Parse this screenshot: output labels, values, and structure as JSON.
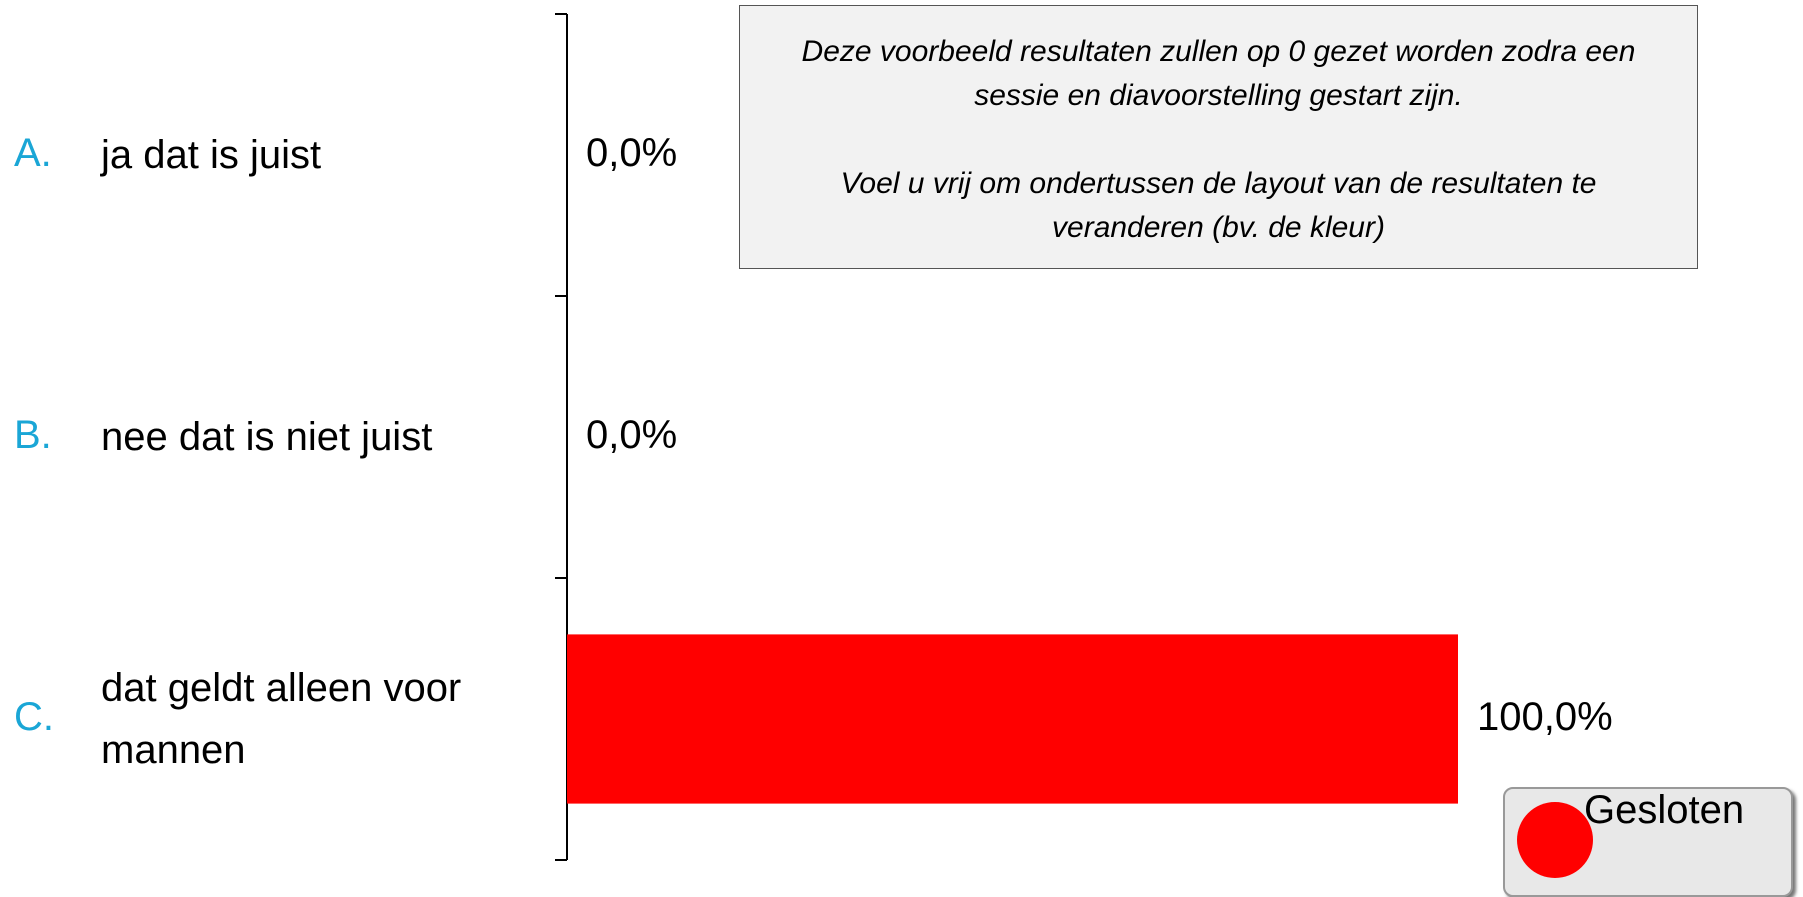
{
  "chart_data": {
    "type": "bar",
    "orientation": "horizontal",
    "letters": [
      "A.",
      "B.",
      "C."
    ],
    "categories": [
      "ja dat is juist",
      "nee dat is niet juist",
      "dat geldt alleen voor mannen"
    ],
    "values": [
      0,
      0,
      100
    ],
    "value_labels": [
      "0,0%",
      "0,0%",
      "100,0%"
    ],
    "color": "#ff0000",
    "xlim": [
      0,
      100
    ]
  },
  "notice": [
    "Deze voorbeeld resultaten zullen op 0 gezet worden zodra een sessie en diavoorstelling gestart zijn.",
    "Voel u vrij om ondertussen de layout van de resultaten te veranderen (bv. de kleur)"
  ],
  "status_button": "Gesloten"
}
